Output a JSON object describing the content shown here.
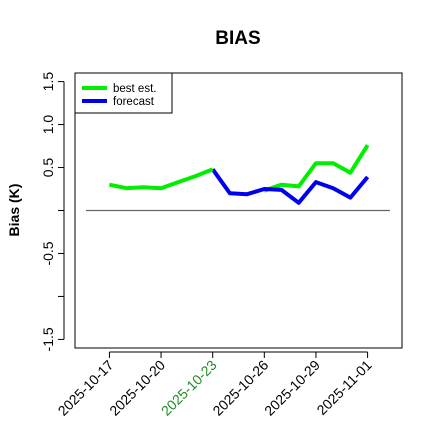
{
  "chart_data": {
    "type": "line",
    "title": "BIAS",
    "xlabel": "",
    "ylabel": "Bias (K)",
    "ylim": [
      -1.6,
      1.6
    ],
    "yticks": [
      -1.5,
      -1.0,
      -0.5,
      0.0,
      0.5,
      1.0,
      1.5
    ],
    "ytick_labels": [
      "-1.5",
      "",
      "-0.5",
      "",
      "0.5",
      "1.0",
      "1.5"
    ],
    "xlim": [
      "2025-10-15",
      "2025-11-03"
    ],
    "xticks": [
      "2025-10-17",
      "2025-10-20",
      "2025-10-23",
      "2025-10-26",
      "2025-10-29",
      "2025-11-01"
    ],
    "xtick_colors": [
      "#000000",
      "#000000",
      "#228B22",
      "#000000",
      "#000000",
      "#000000"
    ],
    "grid": false,
    "legend": "top-left",
    "reference_line": {
      "y": 0.0,
      "color": "#666666"
    },
    "series": [
      {
        "name": "best est.",
        "color": "#00ee00",
        "x": [
          "2025-10-17",
          "2025-10-18",
          "2025-10-19",
          "2025-10-20",
          "2025-10-21",
          "2025-10-22",
          "2025-10-23"
        ],
        "values": [
          0.3,
          0.26,
          0.27,
          0.26,
          0.33,
          0.4,
          0.48
        ]
      },
      {
        "name": "forecast",
        "color": "#0000ee",
        "x": [
          "2025-10-23",
          "2025-10-24",
          "2025-10-25",
          "2025-10-26",
          "2025-10-27",
          "2025-10-28",
          "2025-10-29",
          "2025-10-30",
          "2025-10-31",
          "2025-11-01"
        ],
        "values": [
          0.48,
          0.2,
          0.19,
          0.25,
          0.24,
          0.09,
          0.33,
          0.26,
          0.15,
          0.39
        ]
      },
      {
        "name": "",
        "color": "#00ee00",
        "x": [
          "2025-10-26",
          "2025-10-27",
          "2025-10-28",
          "2025-10-29",
          "2025-10-30",
          "2025-10-31",
          "2025-11-01"
        ],
        "values": [
          0.23,
          0.3,
          0.28,
          0.55,
          0.55,
          0.44,
          0.76
        ]
      }
    ]
  }
}
